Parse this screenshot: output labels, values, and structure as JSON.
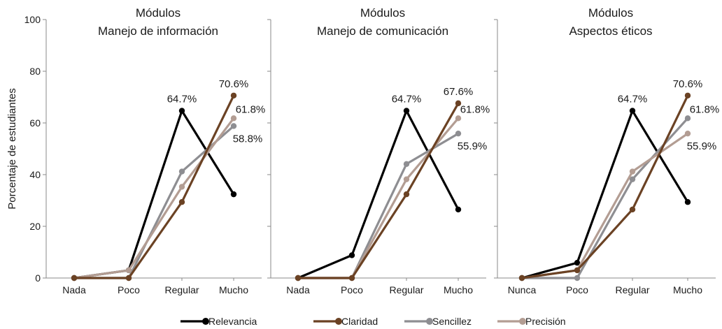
{
  "chart_data": {
    "type": "line",
    "ylabel": "Porcentaje de estudiantes",
    "ylim": [
      0,
      100
    ],
    "yticks": [
      0,
      20,
      40,
      60,
      80,
      100
    ],
    "legend_position": "bottom",
    "colors": {
      "Relevancia": "#000000",
      "Claridad": "#6b4224",
      "Sencillez": "#8e8e92",
      "Precisión": "#b39d93"
    },
    "panels": [
      {
        "title_line1": "Módulos",
        "title_line2": "Manejo de información",
        "categories": [
          "Nada",
          "Poco",
          "Regular",
          "Mucho"
        ],
        "series": [
          {
            "name": "Relevancia",
            "values": [
              0,
              3,
              64.7,
              32.4
            ]
          },
          {
            "name": "Sencillez",
            "values": [
              0,
              0,
              41.2,
              58.8
            ]
          },
          {
            "name": "Precisión",
            "values": [
              0,
              3,
              35.3,
              61.8
            ]
          },
          {
            "name": "Claridad",
            "values": [
              0,
              0,
              29.4,
              70.6
            ]
          }
        ],
        "annotations": [
          {
            "text": "64.7%",
            "category": "Regular",
            "value": 64.7,
            "anchor": "above"
          },
          {
            "text": "70.6%",
            "category": "Mucho",
            "value": 70.6,
            "anchor": "above"
          },
          {
            "text": "61.8%",
            "category": "Mucho",
            "value": 61.8,
            "anchor": "right-up"
          },
          {
            "text": "58.8%",
            "category": "Mucho",
            "value": 58.8,
            "anchor": "below"
          }
        ]
      },
      {
        "title_line1": "Módulos",
        "title_line2": "Manejo de comunicación",
        "categories": [
          "Nada",
          "Poco",
          "Regular",
          "Mucho"
        ],
        "series": [
          {
            "name": "Relevancia",
            "values": [
              0,
              8.8,
              64.7,
              26.5
            ]
          },
          {
            "name": "Sencillez",
            "values": [
              0,
              0,
              44.1,
              55.9
            ]
          },
          {
            "name": "Precisión",
            "values": [
              0,
              0,
              38.2,
              61.8
            ]
          },
          {
            "name": "Claridad",
            "values": [
              0,
              0,
              32.4,
              67.6
            ]
          }
        ],
        "annotations": [
          {
            "text": "64.7%",
            "category": "Regular",
            "value": 64.7,
            "anchor": "above"
          },
          {
            "text": "67.6%",
            "category": "Mucho",
            "value": 67.6,
            "anchor": "above"
          },
          {
            "text": "61.8%",
            "category": "Mucho",
            "value": 61.8,
            "anchor": "right-up"
          },
          {
            "text": "55.9%",
            "category": "Mucho",
            "value": 55.9,
            "anchor": "below"
          }
        ]
      },
      {
        "title_line1": "Módulos",
        "title_line2": "Aspectos éticos",
        "categories": [
          "Nunca",
          "Poco",
          "Regular",
          "Mucho"
        ],
        "series": [
          {
            "name": "Relevancia",
            "values": [
              0,
              5.9,
              64.7,
              29.4
            ]
          },
          {
            "name": "Sencillez",
            "values": [
              0,
              0,
              38.2,
              61.8
            ]
          },
          {
            "name": "Precisión",
            "values": [
              0,
              3,
              41.2,
              55.9
            ]
          },
          {
            "name": "Claridad",
            "values": [
              0,
              3,
              26.5,
              70.6
            ]
          }
        ],
        "annotations": [
          {
            "text": "64.7%",
            "category": "Regular",
            "value": 64.7,
            "anchor": "above"
          },
          {
            "text": "70.6%",
            "category": "Mucho",
            "value": 70.6,
            "anchor": "above"
          },
          {
            "text": "61.8%",
            "category": "Mucho",
            "value": 61.8,
            "anchor": "right-up"
          },
          {
            "text": "55.9%",
            "category": "Mucho",
            "value": 55.9,
            "anchor": "below"
          }
        ]
      }
    ],
    "legend": [
      "Relevancia",
      "Claridad",
      "Sencillez",
      "Precisión"
    ]
  }
}
